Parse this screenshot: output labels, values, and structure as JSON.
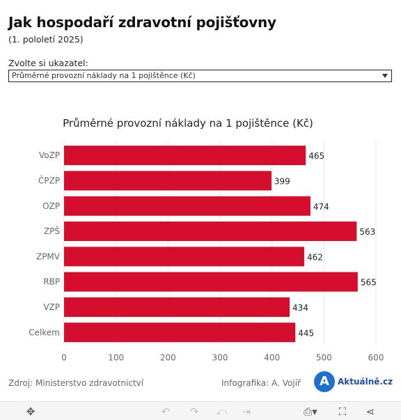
{
  "header": {
    "title": "Jak hospodaří zdravotní pojišťovny",
    "subtitle": "(1. pololetí 2025)"
  },
  "selector": {
    "label": "Zvolte si ukazatel:",
    "selected": "Průměrné provozní náklady na 1 pojištěnce (Kč)"
  },
  "chart_data": {
    "type": "bar",
    "orientation": "horizontal",
    "title": "Průměrné provozní náklady na 1 pojištěnce (Kč)",
    "categories": [
      "VoZP",
      "ČPZP",
      "OZP",
      "ZPŠ",
      "ZPMV",
      "RBP",
      "VZP",
      "Celkem"
    ],
    "values": [
      465,
      399,
      474,
      563,
      462,
      565,
      434,
      445
    ],
    "xlim": [
      0,
      600
    ],
    "xticks": [
      0,
      100,
      200,
      300,
      400,
      500,
      600
    ],
    "grid": true,
    "bar_color": "#d50e2d"
  },
  "footer": {
    "source": "Zdroj: Ministerstvo zdravotnictví",
    "credit": "Infografika: A. Vojíř",
    "logo_letter": "A",
    "logo_text": "Aktuálně.cz",
    "logo_color": "#1f6fd1"
  },
  "toolbar": {
    "icons": [
      "move-icon",
      "undo-icon",
      "redo-icon",
      "revert-icon",
      "forward-icon",
      "download-icon",
      "fullscreen-icon",
      "share-icon"
    ]
  }
}
